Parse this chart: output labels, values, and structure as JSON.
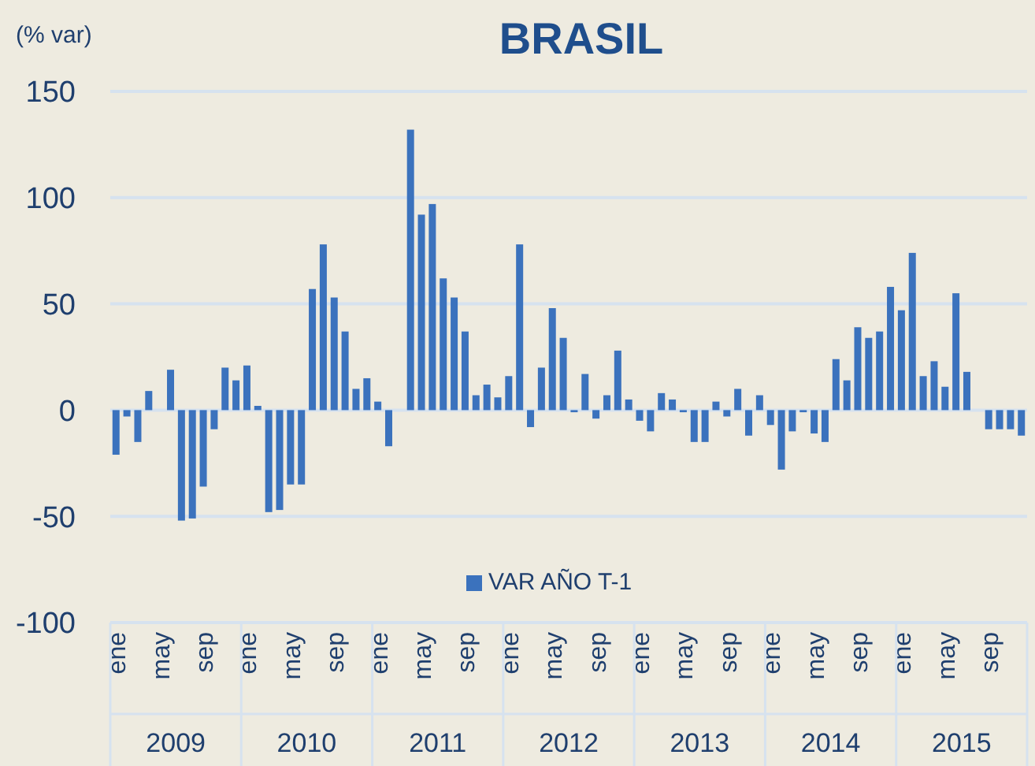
{
  "chart_data": {
    "type": "bar",
    "title": "BRASIL",
    "ylabel": "(% var)",
    "categories": [
      "ene",
      null,
      null,
      null,
      "may",
      null,
      null,
      null,
      "sep",
      null,
      null,
      null,
      "ene",
      null,
      null,
      null,
      "may",
      null,
      null,
      null,
      "sep",
      null,
      null,
      null,
      "ene",
      null,
      null,
      null,
      "may",
      null,
      null,
      null,
      "sep",
      null,
      null,
      null,
      "ene",
      null,
      null,
      null,
      "may",
      null,
      null,
      null,
      "sep",
      null,
      null,
      null,
      "ene",
      null,
      null,
      null,
      "may",
      null,
      null,
      null,
      "sep",
      null,
      null,
      null,
      "ene",
      null,
      null,
      null,
      "may",
      null,
      null,
      null,
      "sep",
      null,
      null,
      null,
      "ene",
      null,
      null,
      null,
      "may",
      null,
      null,
      null,
      "sep",
      null,
      null,
      null
    ],
    "series": [
      {
        "name": "VAR AÑO T-1",
        "color": "#3b72bd",
        "values": [
          -21,
          -3,
          -15,
          9,
          0,
          19,
          -52,
          -51,
          -36,
          -9,
          20,
          14,
          21,
          2,
          -48,
          -47,
          -35,
          -35,
          57,
          78,
          53,
          37,
          10,
          15,
          4,
          -17,
          0,
          132,
          92,
          97,
          62,
          53,
          37,
          7,
          12,
          6,
          16,
          78,
          -8,
          20,
          48,
          34,
          -1,
          17,
          -4,
          7,
          28,
          5,
          -5,
          -10,
          8,
          5,
          -1,
          -15,
          -15,
          4,
          -3,
          10,
          -12,
          7,
          -7,
          -28,
          -10,
          -1,
          -11,
          -15,
          24,
          14,
          39,
          34,
          37,
          58,
          47,
          74,
          16,
          23,
          11,
          55,
          18,
          0,
          -9,
          -9,
          -9,
          -12
        ]
      }
    ],
    "ylim": [
      -100,
      150
    ],
    "yticks": [
      -100,
      -50,
      0,
      50,
      100,
      150
    ],
    "grid": "y",
    "legend": "bottom",
    "annotations": [
      "2009",
      "2010",
      "2011",
      "2012",
      "2013",
      "2014",
      "2015"
    ]
  }
}
